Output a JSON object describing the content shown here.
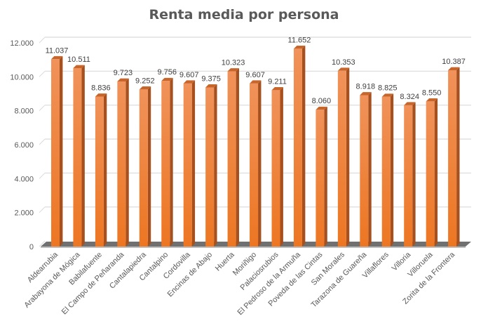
{
  "chart_data": {
    "type": "bar",
    "style": "3d-column",
    "title": "Renta media por persona",
    "xlabel": "",
    "ylabel": "",
    "ylim": [
      0,
      12000
    ],
    "yticks": [
      0,
      2000,
      4000,
      6000,
      8000,
      10000,
      12000
    ],
    "ytick_labels": [
      "0",
      "2.000",
      "4.000",
      "6.000",
      "8.000",
      "10.000",
      "12.000"
    ],
    "grid": true,
    "legend": null,
    "categories": [
      "Aldearrubia",
      "Arabayona de Mógica",
      "Babilafuente",
      "El Campo de Peñaranda",
      "Cantalapiedra",
      "Cantalpino",
      "Cordovilla",
      "Encinas de Abajo",
      "Huerta",
      "Moriñigo",
      "Palaciosrubios",
      "El Pedroso de la Armuña",
      "Poveda de las Cintas",
      "San Morales",
      "Tarazona de Guareña",
      "Villaflores",
      "Villoria",
      "Villoruela",
      "Zorita de la Frontera"
    ],
    "values": [
      11037,
      10511,
      8836,
      9723,
      9252,
      9756,
      9607,
      9375,
      10323,
      9607,
      9211,
      11652,
      8060,
      10353,
      8918,
      8825,
      8324,
      8550,
      10387
    ],
    "value_labels": [
      "11.037",
      "10.511",
      "8.836",
      "9.723",
      "9.252",
      "9.756",
      "9.607",
      "9.375",
      "10.323",
      "9.607",
      "9.211",
      "11.652",
      "8.060",
      "10.353",
      "8.918",
      "8.825",
      "8.324",
      "8.550",
      "10.387"
    ],
    "colors": {
      "bar_front": "#ED7D31",
      "bar_side": "#A5501E",
      "bar_top": "#C8652A",
      "floor": "#707070",
      "grid": "#D9D9D9",
      "text": "#595959"
    }
  }
}
